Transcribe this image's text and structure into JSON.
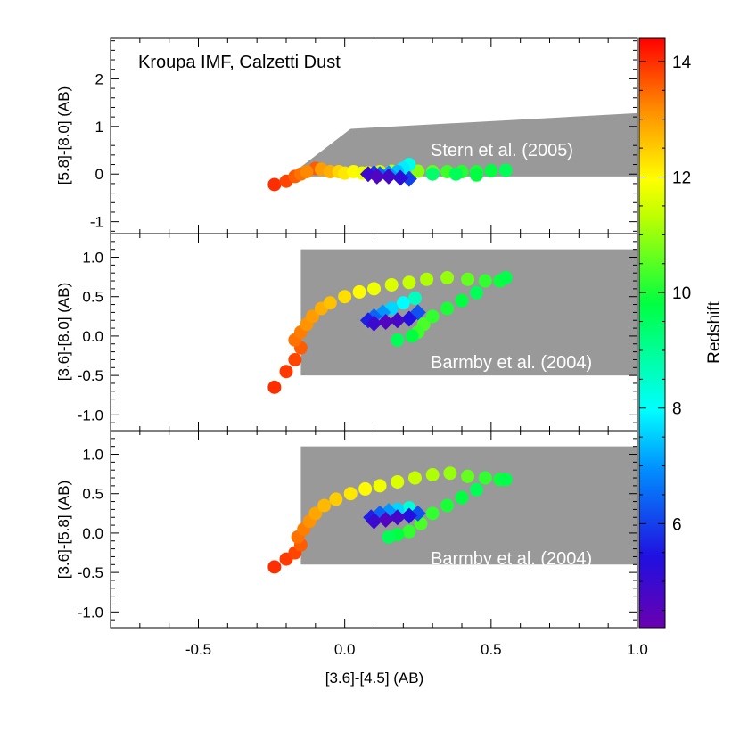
{
  "figure_title": "Kroupa IMF, Calzetti Dust",
  "chart_data": [
    {
      "type": "scatter",
      "panel": "top",
      "annotation": "Kroupa IMF, Calzetti Dust",
      "region_label": "Stern et al. (2005)",
      "ylabel": "[5.8]-[8.0] (AB)",
      "xlim": [
        -0.8,
        1.0
      ],
      "ylim": [
        -1.25,
        2.85
      ],
      "yticks": [
        -1,
        0,
        1,
        2
      ],
      "ytick_labels": [
        "-1",
        "0",
        "1",
        "2"
      ],
      "region_polygon": [
        [
          -0.15,
          0.15
        ],
        [
          0.02,
          0.95
        ],
        [
          1.0,
          1.28
        ],
        [
          1.0,
          -0.05
        ],
        [
          -0.15,
          -0.05
        ]
      ],
      "points": [
        {
          "x": -0.24,
          "y": -0.22,
          "z": 14.0
        },
        {
          "x": -0.2,
          "y": -0.15,
          "z": 13.8
        },
        {
          "x": -0.17,
          "y": -0.05,
          "z": 13.6
        },
        {
          "x": -0.15,
          "y": 0.0,
          "z": 13.4
        },
        {
          "x": -0.13,
          "y": 0.05,
          "z": 13.2
        },
        {
          "x": -0.1,
          "y": 0.12,
          "z": 13.6
        },
        {
          "x": -0.08,
          "y": 0.1,
          "z": 13.0
        },
        {
          "x": -0.05,
          "y": 0.05,
          "z": 12.8
        },
        {
          "x": -0.02,
          "y": 0.05,
          "z": 12.4
        },
        {
          "x": 0.0,
          "y": 0.02,
          "z": 12.2
        },
        {
          "x": 0.03,
          "y": 0.05,
          "z": 12.0
        },
        {
          "x": 0.06,
          "y": 0.02,
          "z": 11.8
        },
        {
          "x": 0.08,
          "y": 0.03,
          "z": 11.6
        },
        {
          "x": 0.12,
          "y": 0.05,
          "z": 11.5
        },
        {
          "x": 0.16,
          "y": 0.06,
          "z": 11.3
        },
        {
          "x": 0.2,
          "y": 0.05,
          "z": 11.1
        },
        {
          "x": 0.25,
          "y": 0.06,
          "z": 10.9
        },
        {
          "x": 0.3,
          "y": 0.05,
          "z": 10.6
        },
        {
          "x": 0.35,
          "y": 0.05,
          "z": 10.3
        },
        {
          "x": 0.4,
          "y": 0.05,
          "z": 10.1
        },
        {
          "x": 0.45,
          "y": 0.05,
          "z": 10.0
        },
        {
          "x": 0.5,
          "y": 0.07,
          "z": 9.8
        },
        {
          "x": 0.55,
          "y": 0.08,
          "z": 9.6
        },
        {
          "x": 0.3,
          "y": 0.0,
          "z": 9.4
        },
        {
          "x": 0.38,
          "y": 0.0,
          "z": 9.6
        },
        {
          "x": 0.45,
          "y": -0.02,
          "z": 9.8
        },
        {
          "x": 0.22,
          "y": 0.2,
          "z": 8.2
        },
        {
          "x": 0.2,
          "y": 0.12,
          "z": 7.8
        },
        {
          "x": 0.18,
          "y": 0.05,
          "z": 7.4
        },
        {
          "x": 0.15,
          "y": 0.02,
          "z": 7.0
        },
        {
          "x": 0.12,
          "y": 0.0,
          "z": 6.4
        },
        {
          "x": 0.1,
          "y": 0.02,
          "z": 5.8
        },
        {
          "x": 0.08,
          "y": 0.0,
          "z": 5.0
        },
        {
          "x": 0.11,
          "y": -0.05,
          "z": 4.6
        },
        {
          "x": 0.15,
          "y": -0.05,
          "z": 4.8
        },
        {
          "x": 0.19,
          "y": -0.08,
          "z": 5.2
        },
        {
          "x": 0.22,
          "y": -0.1,
          "z": 6.0
        }
      ]
    },
    {
      "type": "scatter",
      "panel": "middle",
      "region_label": "Barmby et al. (2004)",
      "ylabel": "[3.6]-[8.0] (AB)",
      "xlim": [
        -0.8,
        1.0
      ],
      "ylim": [
        -1.2,
        1.3
      ],
      "yticks": [
        -1.0,
        -0.5,
        0.0,
        0.5,
        1.0
      ],
      "ytick_labels": [
        "-1.0",
        "-0.5",
        "0.0",
        "0.5",
        "1.0"
      ],
      "region_polygon": [
        [
          -0.15,
          -0.5
        ],
        [
          -0.15,
          1.1
        ],
        [
          1.0,
          1.1
        ],
        [
          1.0,
          -0.5
        ]
      ],
      "points": [
        {
          "x": -0.24,
          "y": -0.65,
          "z": 14.0
        },
        {
          "x": -0.2,
          "y": -0.45,
          "z": 13.9
        },
        {
          "x": -0.17,
          "y": -0.3,
          "z": 13.8
        },
        {
          "x": -0.15,
          "y": -0.15,
          "z": 13.6
        },
        {
          "x": -0.17,
          "y": -0.05,
          "z": 13.4
        },
        {
          "x": -0.15,
          "y": 0.05,
          "z": 13.3
        },
        {
          "x": -0.13,
          "y": 0.15,
          "z": 13.1
        },
        {
          "x": -0.11,
          "y": 0.25,
          "z": 13.0
        },
        {
          "x": -0.08,
          "y": 0.35,
          "z": 12.8
        },
        {
          "x": -0.05,
          "y": 0.42,
          "z": 12.6
        },
        {
          "x": 0.0,
          "y": 0.5,
          "z": 12.3
        },
        {
          "x": 0.05,
          "y": 0.56,
          "z": 12.0
        },
        {
          "x": 0.1,
          "y": 0.6,
          "z": 11.8
        },
        {
          "x": 0.16,
          "y": 0.65,
          "z": 11.6
        },
        {
          "x": 0.22,
          "y": 0.68,
          "z": 11.4
        },
        {
          "x": 0.28,
          "y": 0.72,
          "z": 11.2
        },
        {
          "x": 0.35,
          "y": 0.74,
          "z": 11.0
        },
        {
          "x": 0.42,
          "y": 0.72,
          "z": 10.6
        },
        {
          "x": 0.48,
          "y": 0.7,
          "z": 10.2
        },
        {
          "x": 0.53,
          "y": 0.7,
          "z": 9.9
        },
        {
          "x": 0.55,
          "y": 0.74,
          "z": 9.7
        },
        {
          "x": 0.45,
          "y": 0.55,
          "z": 9.6
        },
        {
          "x": 0.4,
          "y": 0.45,
          "z": 9.8
        },
        {
          "x": 0.35,
          "y": 0.35,
          "z": 10.0
        },
        {
          "x": 0.3,
          "y": 0.25,
          "z": 10.2
        },
        {
          "x": 0.27,
          "y": 0.15,
          "z": 10.4
        },
        {
          "x": 0.25,
          "y": 0.05,
          "z": 10.3
        },
        {
          "x": 0.23,
          "y": 0.0,
          "z": 9.8
        },
        {
          "x": 0.18,
          "y": -0.05,
          "z": 9.6
        },
        {
          "x": 0.24,
          "y": 0.48,
          "z": 8.6
        },
        {
          "x": 0.2,
          "y": 0.42,
          "z": 8.0
        },
        {
          "x": 0.16,
          "y": 0.35,
          "z": 7.6
        },
        {
          "x": 0.13,
          "y": 0.3,
          "z": 7.0
        },
        {
          "x": 0.1,
          "y": 0.25,
          "z": 6.4
        },
        {
          "x": 0.08,
          "y": 0.2,
          "z": 5.6
        },
        {
          "x": 0.1,
          "y": 0.16,
          "z": 5.0
        },
        {
          "x": 0.14,
          "y": 0.18,
          "z": 4.6
        },
        {
          "x": 0.18,
          "y": 0.2,
          "z": 4.8
        },
        {
          "x": 0.22,
          "y": 0.22,
          "z": 5.4
        },
        {
          "x": 0.25,
          "y": 0.3,
          "z": 6.2
        }
      ]
    },
    {
      "type": "scatter",
      "panel": "bottom",
      "region_label": "Barmby et al. (2004)",
      "ylabel": "[3.6]-[5.8] (AB)",
      "xlabel": "[3.6]-[4.5] (AB)",
      "xlim": [
        -0.8,
        1.0
      ],
      "xticks": [
        -0.5,
        0.0,
        0.5,
        1.0
      ],
      "xtick_labels": [
        "-0.5",
        "0.0",
        "0.5",
        "1.0"
      ],
      "ylim": [
        -1.2,
        1.3
      ],
      "yticks": [
        -1.0,
        -0.5,
        0.0,
        0.5,
        1.0
      ],
      "ytick_labels": [
        "-1.0",
        "-0.5",
        "0.0",
        "0.5",
        "1.0"
      ],
      "region_polygon": [
        [
          -0.15,
          -0.4
        ],
        [
          -0.15,
          1.1
        ],
        [
          1.0,
          1.1
        ],
        [
          1.0,
          -0.4
        ]
      ],
      "points": [
        {
          "x": -0.24,
          "y": -0.43,
          "z": 14.0
        },
        {
          "x": -0.2,
          "y": -0.33,
          "z": 13.9
        },
        {
          "x": -0.17,
          "y": -0.25,
          "z": 13.8
        },
        {
          "x": -0.15,
          "y": -0.15,
          "z": 13.6
        },
        {
          "x": -0.16,
          "y": -0.05,
          "z": 13.4
        },
        {
          "x": -0.14,
          "y": 0.05,
          "z": 13.3
        },
        {
          "x": -0.12,
          "y": 0.15,
          "z": 13.1
        },
        {
          "x": -0.1,
          "y": 0.25,
          "z": 12.9
        },
        {
          "x": -0.07,
          "y": 0.35,
          "z": 12.7
        },
        {
          "x": -0.03,
          "y": 0.43,
          "z": 12.5
        },
        {
          "x": 0.02,
          "y": 0.5,
          "z": 12.2
        },
        {
          "x": 0.07,
          "y": 0.56,
          "z": 12.0
        },
        {
          "x": 0.12,
          "y": 0.6,
          "z": 11.8
        },
        {
          "x": 0.18,
          "y": 0.65,
          "z": 11.6
        },
        {
          "x": 0.24,
          "y": 0.7,
          "z": 11.4
        },
        {
          "x": 0.3,
          "y": 0.74,
          "z": 11.2
        },
        {
          "x": 0.36,
          "y": 0.76,
          "z": 11.0
        },
        {
          "x": 0.42,
          "y": 0.72,
          "z": 10.6
        },
        {
          "x": 0.48,
          "y": 0.7,
          "z": 10.2
        },
        {
          "x": 0.53,
          "y": 0.68,
          "z": 9.9
        },
        {
          "x": 0.55,
          "y": 0.68,
          "z": 9.7
        },
        {
          "x": 0.45,
          "y": 0.55,
          "z": 9.6
        },
        {
          "x": 0.4,
          "y": 0.45,
          "z": 9.8
        },
        {
          "x": 0.35,
          "y": 0.35,
          "z": 10.0
        },
        {
          "x": 0.3,
          "y": 0.25,
          "z": 10.2
        },
        {
          "x": 0.26,
          "y": 0.12,
          "z": 10.4
        },
        {
          "x": 0.22,
          "y": 0.02,
          "z": 10.2
        },
        {
          "x": 0.18,
          "y": -0.02,
          "z": 9.8
        },
        {
          "x": 0.15,
          "y": -0.05,
          "z": 9.6
        },
        {
          "x": 0.22,
          "y": 0.32,
          "z": 8.4
        },
        {
          "x": 0.18,
          "y": 0.3,
          "z": 7.6
        },
        {
          "x": 0.15,
          "y": 0.28,
          "z": 7.0
        },
        {
          "x": 0.12,
          "y": 0.25,
          "z": 6.4
        },
        {
          "x": 0.09,
          "y": 0.2,
          "z": 5.6
        },
        {
          "x": 0.1,
          "y": 0.15,
          "z": 5.0
        },
        {
          "x": 0.14,
          "y": 0.17,
          "z": 4.6
        },
        {
          "x": 0.18,
          "y": 0.2,
          "z": 4.8
        },
        {
          "x": 0.22,
          "y": 0.22,
          "z": 5.4
        },
        {
          "x": 0.25,
          "y": 0.25,
          "z": 6.2
        }
      ]
    }
  ],
  "colorbar": {
    "title": "Redshift",
    "range": [
      4.2,
      14.4
    ],
    "ticks": [
      6,
      8,
      10,
      12,
      14
    ],
    "tick_labels": [
      "6",
      "8",
      "10",
      "12",
      "14"
    ]
  },
  "colors": {
    "region_fill": "#999999",
    "region_label": "#ffffff",
    "axis": "#000000"
  }
}
